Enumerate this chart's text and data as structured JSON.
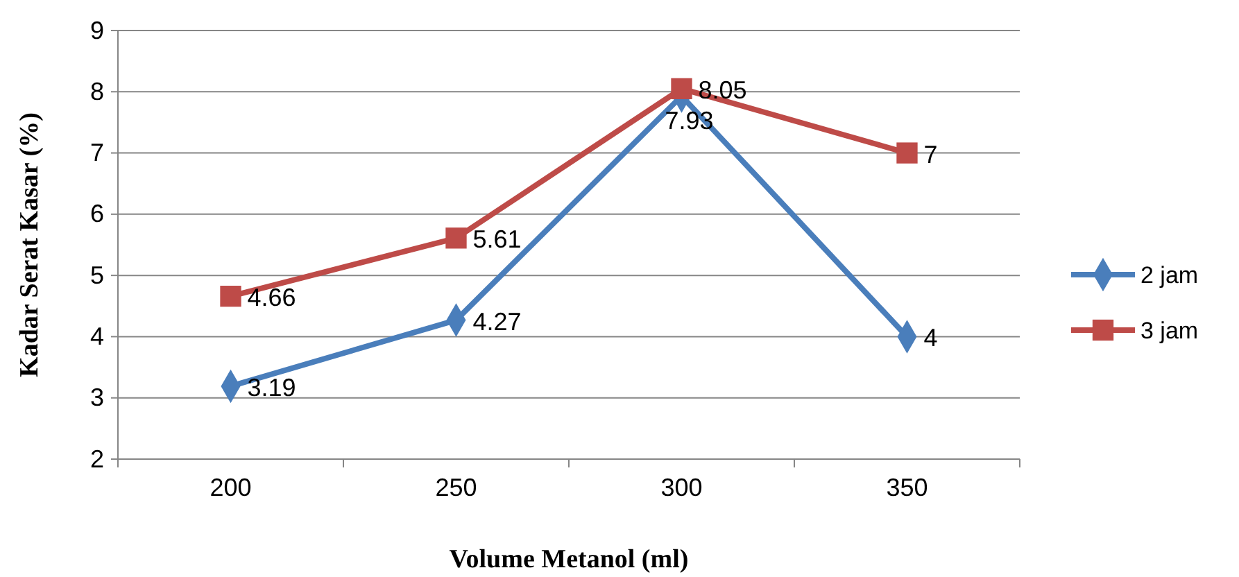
{
  "chart_data": {
    "type": "line",
    "xlabel": "Volume Metanol (ml)",
    "ylabel": "Kadar Serat Kasar (%)",
    "categories": [
      "200",
      "250",
      "300",
      "350"
    ],
    "ylim": [
      2,
      9
    ],
    "yticks": [
      2,
      3,
      4,
      5,
      6,
      7,
      8,
      9
    ],
    "grid": "y",
    "legend": "right",
    "data_labels": true,
    "line_style": "solid",
    "series": [
      {
        "name": "2 jam",
        "color": "#4a7ebb",
        "marker": "diamond",
        "values": [
          3.19,
          4.27,
          7.93,
          4
        ]
      },
      {
        "name": "3 jam",
        "color": "#be4b48",
        "marker": "square",
        "values": [
          4.66,
          5.61,
          8.05,
          7
        ]
      }
    ]
  }
}
